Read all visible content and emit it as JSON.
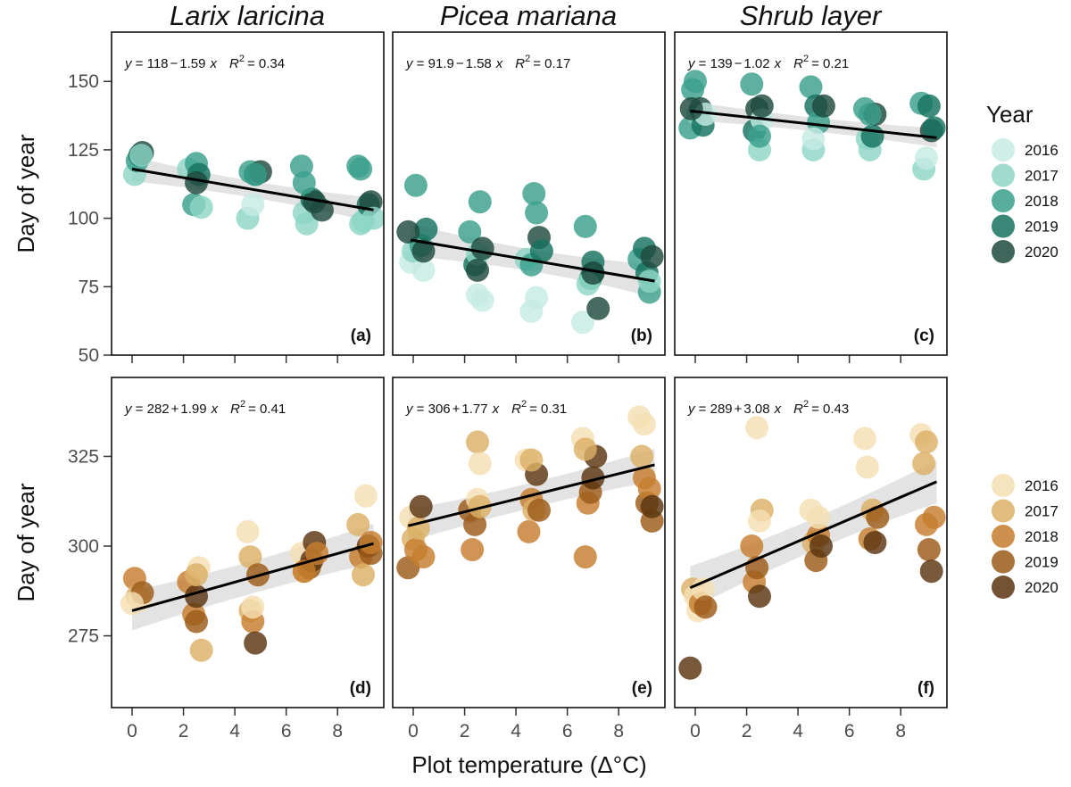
{
  "chart_data": {
    "type": "scatter",
    "columns": [
      "Larix laricina",
      "Picea mariana",
      "Shrub layer"
    ],
    "x_label": "Plot temperature (Δ°C)",
    "x_ticks": [
      0,
      2,
      4,
      6,
      8
    ],
    "xlim": [
      -0.8,
      9.8
    ],
    "rows": [
      {
        "y_label": "Day of year",
        "ylim": [
          50,
          168
        ],
        "y_ticks": [
          50,
          75,
          100,
          125,
          150
        ],
        "legend": {
          "title": "Year",
          "years": [
            "2016",
            "2017",
            "2018",
            "2019",
            "2020"
          ],
          "colors": [
            "#c6ebe3",
            "#8ed6c6",
            "#3aa08c",
            "#16735f",
            "#1e4a3e"
          ]
        }
      },
      {
        "y_label": "Day of year",
        "ylim": [
          255,
          347
        ],
        "y_ticks": [
          275,
          300,
          325
        ],
        "legend": {
          "title": "",
          "years": [
            "2016",
            "2017",
            "2018",
            "2019",
            "2020"
          ],
          "colors": [
            "#f5dfb3",
            "#dcb066",
            "#c67e2e",
            "#9b5a18",
            "#5a3510"
          ]
        }
      }
    ],
    "panels": [
      {
        "label": "(a)",
        "row": 0,
        "col": 0,
        "equation": {
          "lhs": "y",
          "intercept": "118",
          "op": "−",
          "slope": "1.59",
          "x": "x",
          "r2_label": "R",
          "r2_exp": "2",
          "r2_value": "= 0.34"
        },
        "fit": {
          "intercept": 118,
          "slope": -1.59,
          "x0": 0,
          "x1": 9.4,
          "ci": [
            3,
            4.5
          ]
        },
        "points": [
          [
            0.1,
            116,
            1
          ],
          [
            0.2,
            121,
            2
          ],
          [
            0.3,
            123,
            3
          ],
          [
            0.4,
            124,
            4
          ],
          [
            0.35,
            123,
            1
          ],
          [
            2.2,
            118,
            1
          ],
          [
            2.4,
            105,
            2
          ],
          [
            2.5,
            120,
            2
          ],
          [
            2.6,
            116,
            3
          ],
          [
            2.7,
            104,
            1
          ],
          [
            2.5,
            113,
            4
          ],
          [
            4.6,
            117,
            2
          ],
          [
            4.5,
            100,
            1
          ],
          [
            4.7,
            105,
            0
          ],
          [
            4.8,
            116,
            3
          ],
          [
            5.0,
            117,
            4
          ],
          [
            4.8,
            116,
            2
          ],
          [
            6.6,
            119,
            2
          ],
          [
            6.7,
            102,
            1
          ],
          [
            6.8,
            98,
            1
          ],
          [
            7.0,
            107,
            3
          ],
          [
            7.1,
            106,
            4
          ],
          [
            6.7,
            113,
            2
          ],
          [
            7.4,
            103,
            4
          ],
          [
            8.8,
            119,
            2
          ],
          [
            8.9,
            98,
            1
          ],
          [
            9.0,
            99,
            1
          ],
          [
            9.2,
            105,
            3
          ],
          [
            9.3,
            106,
            4
          ],
          [
            9.4,
            100,
            1
          ],
          [
            8.9,
            118,
            2
          ]
        ]
      },
      {
        "label": "(b)",
        "row": 0,
        "col": 1,
        "equation": {
          "lhs": "y",
          "intercept": "91.9",
          "op": "−",
          "slope": "1.58",
          "x": "x",
          "r2_label": "R",
          "r2_exp": "2",
          "r2_value": "= 0.17"
        },
        "fit": {
          "intercept": 91.9,
          "slope": -1.58,
          "x0": -0.1,
          "x1": 9.4,
          "ci": [
            4,
            6
          ]
        },
        "points": [
          [
            -0.1,
            84,
            0
          ],
          [
            0.0,
            88,
            1
          ],
          [
            0.1,
            112,
            2
          ],
          [
            0.3,
            90,
            2
          ],
          [
            0.4,
            81,
            0
          ],
          [
            0.5,
            96,
            3
          ],
          [
            0.4,
            88,
            4
          ],
          [
            -0.2,
            95,
            4
          ],
          [
            2.2,
            95,
            2
          ],
          [
            2.4,
            83,
            3
          ],
          [
            2.5,
            87,
            1
          ],
          [
            2.5,
            72,
            0
          ],
          [
            2.6,
            106,
            2
          ],
          [
            2.7,
            70,
            0
          ],
          [
            2.5,
            81,
            4
          ],
          [
            2.7,
            89,
            4
          ],
          [
            4.4,
            85,
            1
          ],
          [
            4.6,
            83,
            2
          ],
          [
            4.6,
            66,
            0
          ],
          [
            4.7,
            109,
            2
          ],
          [
            4.8,
            102,
            2
          ],
          [
            4.8,
            71,
            0
          ],
          [
            4.9,
            93,
            4
          ],
          [
            5.0,
            88,
            3
          ],
          [
            6.6,
            62,
            0
          ],
          [
            6.7,
            97,
            2
          ],
          [
            6.9,
            78,
            2
          ],
          [
            7.0,
            84,
            3
          ],
          [
            7.0,
            80,
            3
          ],
          [
            6.8,
            76,
            1
          ],
          [
            7.2,
            67,
            4
          ],
          [
            7.0,
            80,
            4
          ],
          [
            8.8,
            85,
            2
          ],
          [
            9.0,
            89,
            3
          ],
          [
            9.1,
            80,
            3
          ],
          [
            9.2,
            73,
            2
          ],
          [
            9.3,
            86,
            4
          ],
          [
            9.2,
            77,
            1
          ]
        ]
      },
      {
        "label": "(c)",
        "row": 0,
        "col": 2,
        "equation": {
          "lhs": "y",
          "intercept": "139",
          "op": "−",
          "slope": "1.02",
          "x": "x",
          "r2_label": "R",
          "r2_exp": "2",
          "r2_value": "= 0.21"
        },
        "fit": {
          "intercept": 139,
          "slope": -1.02,
          "x0": -0.2,
          "x1": 9.4,
          "ci": [
            2.5,
            3.5
          ]
        },
        "points": [
          [
            -0.2,
            133,
            2
          ],
          [
            -0.1,
            147,
            2
          ],
          [
            0.0,
            150,
            2
          ],
          [
            0.1,
            138,
            1
          ],
          [
            0.2,
            140,
            4
          ],
          [
            0.3,
            134,
            3
          ],
          [
            0.4,
            138,
            0
          ],
          [
            -0.15,
            140,
            4
          ],
          [
            2.2,
            149,
            2
          ],
          [
            2.3,
            132,
            3
          ],
          [
            2.4,
            140,
            4
          ],
          [
            2.5,
            125,
            1
          ],
          [
            2.6,
            136,
            0
          ],
          [
            2.6,
            141,
            4
          ],
          [
            2.5,
            130,
            2
          ],
          [
            4.5,
            148,
            2
          ],
          [
            4.6,
            125,
            1
          ],
          [
            4.7,
            141,
            3
          ],
          [
            4.8,
            135,
            2
          ],
          [
            5.0,
            141,
            4
          ],
          [
            4.6,
            129,
            0
          ],
          [
            6.6,
            140,
            2
          ],
          [
            6.7,
            129,
            1
          ],
          [
            6.8,
            125,
            1
          ],
          [
            6.9,
            130,
            3
          ],
          [
            7.0,
            138,
            4
          ],
          [
            6.8,
            138,
            2
          ],
          [
            8.8,
            142,
            2
          ],
          [
            8.9,
            118,
            1
          ],
          [
            9.0,
            122,
            0
          ],
          [
            9.1,
            141,
            3
          ],
          [
            9.2,
            132,
            4
          ],
          [
            9.3,
            133,
            3
          ]
        ]
      },
      {
        "label": "(d)",
        "row": 1,
        "col": 0,
        "equation": {
          "lhs": "y",
          "intercept": "282",
          "op": "+",
          "slope": "1.99",
          "x": "x",
          "r2_label": "R",
          "r2_exp": "2",
          "r2_value": "= 0.41"
        },
        "fit": {
          "intercept": 282,
          "slope": 1.99,
          "x0": 0,
          "x1": 9.4,
          "ci": [
            4.5,
            5.5
          ]
        },
        "points": [
          [
            0.1,
            291,
            2
          ],
          [
            0.2,
            286,
            1
          ],
          [
            0.3,
            285,
            0
          ],
          [
            0.4,
            287,
            3
          ],
          [
            0.0,
            284,
            0
          ],
          [
            2.2,
            290,
            2
          ],
          [
            2.4,
            281,
            2
          ],
          [
            2.5,
            279,
            3
          ],
          [
            2.5,
            286,
            4
          ],
          [
            2.6,
            294,
            0
          ],
          [
            2.7,
            271,
            1
          ],
          [
            2.5,
            292,
            1
          ],
          [
            4.5,
            304,
            0
          ],
          [
            4.6,
            297,
            1
          ],
          [
            4.6,
            282,
            1
          ],
          [
            4.7,
            279,
            2
          ],
          [
            4.8,
            273,
            4
          ],
          [
            4.9,
            292,
            3
          ],
          [
            4.7,
            283,
            0
          ],
          [
            6.6,
            298,
            0
          ],
          [
            6.7,
            293,
            1
          ],
          [
            6.9,
            294,
            3
          ],
          [
            7.0,
            296,
            4
          ],
          [
            7.1,
            301,
            4
          ],
          [
            7.2,
            298,
            2
          ],
          [
            6.7,
            293,
            2
          ],
          [
            8.8,
            306,
            1
          ],
          [
            8.9,
            297,
            2
          ],
          [
            9.0,
            292,
            1
          ],
          [
            9.1,
            314,
            0
          ],
          [
            9.2,
            300,
            4
          ],
          [
            9.3,
            298,
            3
          ],
          [
            9.3,
            301,
            2
          ]
        ]
      },
      {
        "label": "(e)",
        "row": 1,
        "col": 1,
        "equation": {
          "lhs": "y",
          "intercept": "306",
          "op": "+",
          "slope": "1.77",
          "x": "x",
          "r2_label": "R",
          "r2_exp": "2",
          "r2_value": "= 0.31"
        },
        "fit": {
          "intercept": 306,
          "slope": 1.77,
          "x0": -0.2,
          "x1": 9.4,
          "ci": [
            3.5,
            4.5
          ]
        },
        "points": [
          [
            -0.2,
            294,
            3
          ],
          [
            -0.1,
            308,
            0
          ],
          [
            0.0,
            302,
            1
          ],
          [
            0.1,
            299,
            2
          ],
          [
            0.2,
            305,
            1
          ],
          [
            0.3,
            311,
            4
          ],
          [
            0.4,
            297,
            2
          ],
          [
            2.2,
            310,
            3
          ],
          [
            2.3,
            299,
            2
          ],
          [
            2.4,
            306,
            3
          ],
          [
            2.5,
            329,
            1
          ],
          [
            2.5,
            313,
            0
          ],
          [
            2.6,
            323,
            0
          ],
          [
            2.6,
            311,
            1
          ],
          [
            4.4,
            324,
            0
          ],
          [
            4.5,
            304,
            2
          ],
          [
            4.6,
            313,
            2
          ],
          [
            4.7,
            310,
            1
          ],
          [
            4.8,
            320,
            4
          ],
          [
            4.9,
            310,
            3
          ],
          [
            4.6,
            324,
            1
          ],
          [
            6.6,
            330,
            0
          ],
          [
            6.7,
            297,
            2
          ],
          [
            6.8,
            312,
            2
          ],
          [
            6.9,
            315,
            3
          ],
          [
            7.0,
            319,
            4
          ],
          [
            7.1,
            325,
            4
          ],
          [
            6.7,
            327,
            1
          ],
          [
            8.8,
            336,
            0
          ],
          [
            8.9,
            325,
            1
          ],
          [
            9.0,
            319,
            2
          ],
          [
            9.1,
            312,
            3
          ],
          [
            9.2,
            316,
            2
          ],
          [
            9.3,
            307,
            3
          ],
          [
            9.3,
            311,
            4
          ],
          [
            9.0,
            334,
            0
          ]
        ]
      },
      {
        "label": "(f)",
        "row": 1,
        "col": 2,
        "equation": {
          "lhs": "y",
          "intercept": "289",
          "op": "+",
          "slope": "3.08",
          "x": "x",
          "r2_label": "R",
          "r2_exp": "2",
          "r2_value": "= 0.43"
        },
        "fit": {
          "intercept": 289,
          "slope": 3.08,
          "x0": -0.2,
          "x1": 9.4,
          "ci": [
            4.5,
            6
          ]
        },
        "points": [
          [
            -0.2,
            266,
            4
          ],
          [
            -0.1,
            288,
            1
          ],
          [
            0.0,
            286,
            0
          ],
          [
            0.1,
            282,
            0
          ],
          [
            0.2,
            284,
            2
          ],
          [
            0.3,
            288,
            0
          ],
          [
            0.4,
            283,
            3
          ],
          [
            2.2,
            300,
            2
          ],
          [
            2.3,
            290,
            2
          ],
          [
            2.4,
            294,
            3
          ],
          [
            2.4,
            333,
            0
          ],
          [
            2.5,
            286,
            4
          ],
          [
            2.6,
            310,
            1
          ],
          [
            2.5,
            307,
            0
          ],
          [
            4.5,
            310,
            0
          ],
          [
            4.6,
            301,
            1
          ],
          [
            4.7,
            296,
            3
          ],
          [
            4.8,
            303,
            2
          ],
          [
            4.9,
            300,
            4
          ],
          [
            4.8,
            308,
            0
          ],
          [
            6.6,
            330,
            0
          ],
          [
            6.7,
            322,
            0
          ],
          [
            6.8,
            302,
            2
          ],
          [
            6.9,
            310,
            1
          ],
          [
            7.0,
            301,
            4
          ],
          [
            7.1,
            308,
            3
          ],
          [
            8.8,
            331,
            0
          ],
          [
            8.9,
            323,
            1
          ],
          [
            9.0,
            306,
            2
          ],
          [
            9.1,
            299,
            3
          ],
          [
            9.2,
            293,
            4
          ],
          [
            9.3,
            308,
            2
          ],
          [
            9.0,
            329,
            1
          ]
        ]
      }
    ]
  }
}
